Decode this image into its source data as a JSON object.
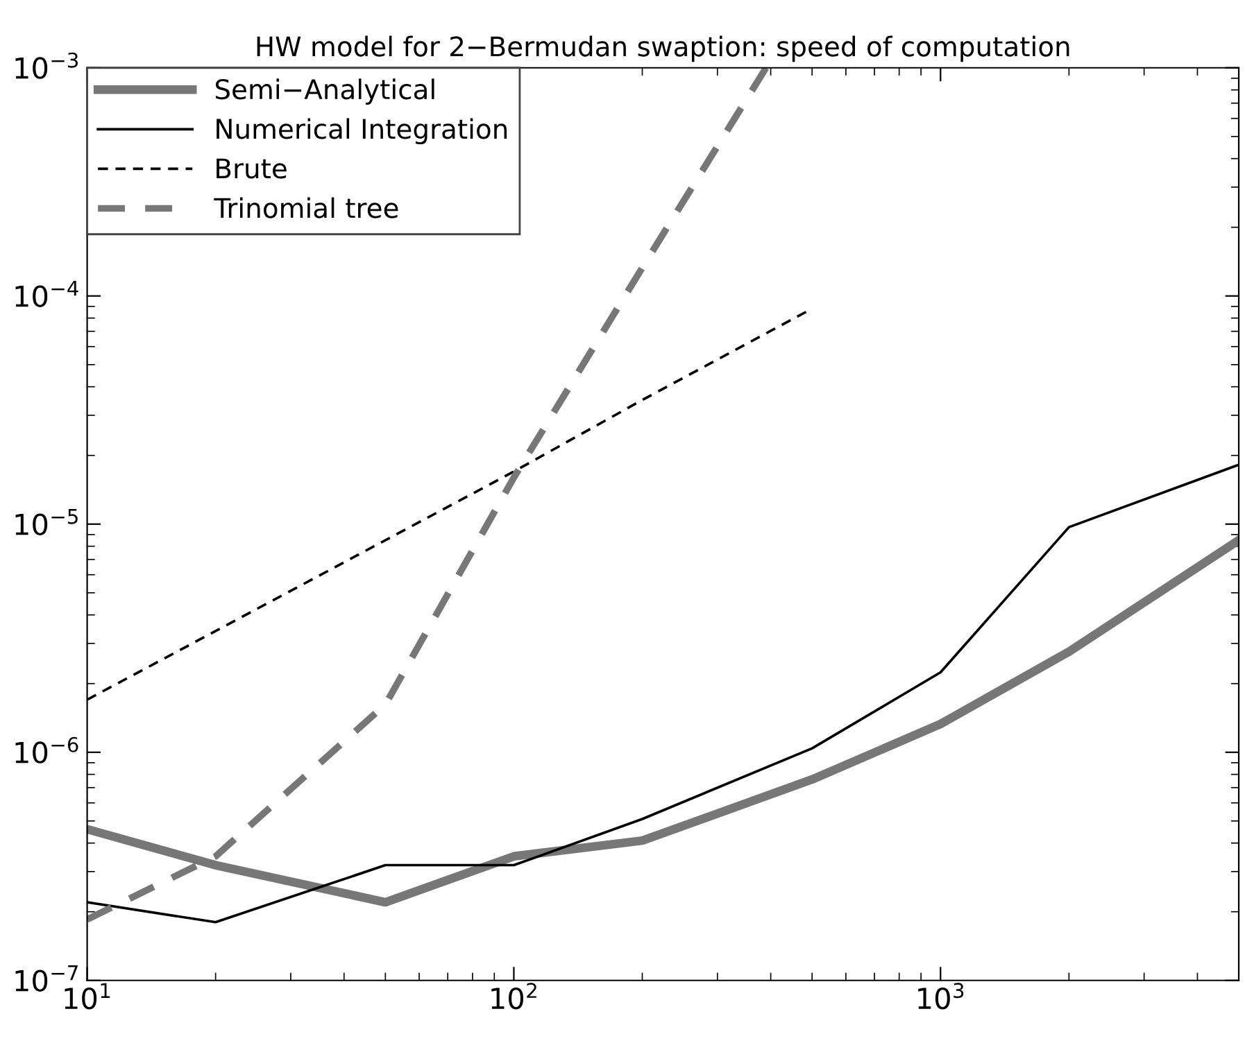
{
  "chart_data": {
    "type": "line",
    "title": "HW model for 2−Bermudan swaption: speed of computation",
    "log": "xy",
    "xlim": [
      10,
      5000
    ],
    "ylim": [
      1e-07,
      0.001
    ],
    "xticks": [
      {
        "value": 10,
        "label": "10$^{1}$"
      },
      {
        "value": 100,
        "label": "10$^{2}$"
      },
      {
        "value": 1000,
        "label": "10$^{3}$"
      }
    ],
    "yticks": [
      {
        "value": 1e-07,
        "label": "10$^{−7}$"
      },
      {
        "value": 1e-06,
        "label": "10$^{−6}$"
      },
      {
        "value": 1e-05,
        "label": "10$^{−5}$"
      },
      {
        "value": 0.0001,
        "label": "10$^{−4}$"
      },
      {
        "value": 0.001,
        "label": "10$^{−3}$"
      }
    ],
    "grid": false,
    "legend": "top left",
    "marker": "none",
    "series": [
      {
        "name": "Semi−Analytical",
        "color": "#777777",
        "line_style": "solid",
        "x": [
          10,
          20,
          50,
          100,
          200,
          500,
          1000,
          2000,
          5000
        ],
        "values": [
          4.6e-07,
          3.2e-07,
          2.2e-07,
          3.5e-07,
          4.1e-07,
          7.6e-07,
          1.33e-06,
          2.76e-06,
          8.5e-06
        ]
      },
      {
        "name": "Numerical Integration",
        "color": "#000000",
        "line_style": "solid",
        "x": [
          10,
          20,
          50,
          100,
          200,
          500,
          1000,
          2000,
          5000
        ],
        "values": [
          2.2e-07,
          1.8e-07,
          3.2e-07,
          3.2e-07,
          5.1e-07,
          1.04e-06,
          2.24e-06,
          9.7e-06,
          1.82e-05
        ]
      },
      {
        "name": "Brute",
        "color": "#000000",
        "line_style": "dashed",
        "x": [
          10,
          20,
          50,
          100,
          200,
          500
        ],
        "values": [
          1.7e-06,
          3.4e-06,
          8.5e-06,
          1.7e-05,
          3.5e-05,
          8.8e-05
        ]
      },
      {
        "name": "Trinomial tree",
        "color": "#777777",
        "line_style": "dashed",
        "x": [
          10,
          20,
          50,
          100,
          200,
          390
        ],
        "values": [
          1.85e-07,
          3.5e-07,
          1.62e-06,
          1.6e-05,
          0.000133,
          0.001
        ]
      }
    ]
  }
}
